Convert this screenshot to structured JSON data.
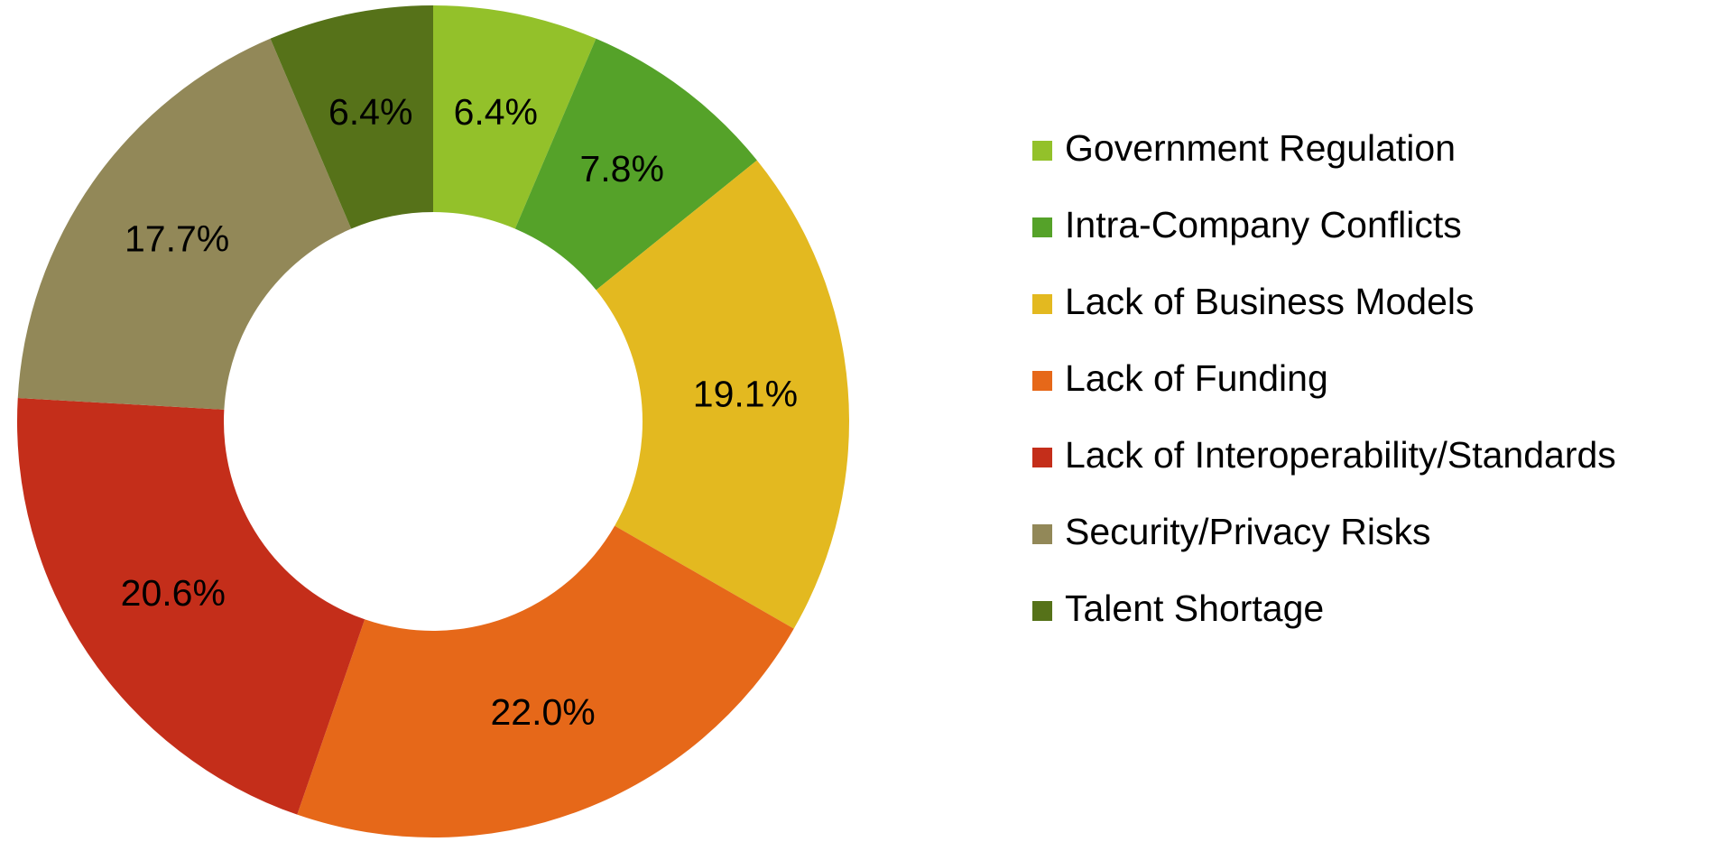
{
  "chart_data": {
    "type": "donut",
    "categories": [
      "Government Regulation",
      "Intra-Company Conflicts",
      "Lack of Business Models",
      "Lack of Funding",
      "Lack of Interoperability/Standards",
      "Security/Privacy Risks",
      "Talent Shortage"
    ],
    "values": [
      6.4,
      7.8,
      19.1,
      22.0,
      20.6,
      17.7,
      6.4
    ],
    "value_labels": [
      "6.4%",
      "7.8%",
      "19.1%",
      "22.0%",
      "20.6%",
      "17.7%",
      "6.4%"
    ],
    "colors": [
      "#93c12a",
      "#55a229",
      "#e3b920",
      "#e66819",
      "#c42e1a",
      "#928858",
      "#567219"
    ],
    "legend": "right"
  }
}
